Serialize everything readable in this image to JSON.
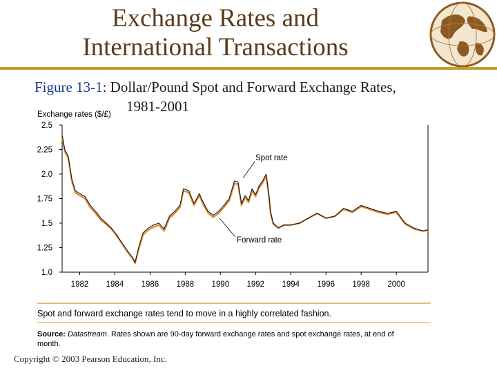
{
  "slide": {
    "title_line1": "Exchange Rates and",
    "title_line2": "International Transactions",
    "figure_number": "Figure 13-1",
    "figure_sep": ":",
    "figure_title_line1": "Dollar/Pound Spot and Forward Exchange Rates,",
    "figure_title_line2": "1981-2001",
    "note": "Spot and forward exchange rates tend to move in a highly correlated fashion.",
    "source_label": "Source:",
    "source_name": "Datastream",
    "source_text": ". Rates shown are 90-day forward exchange rates and spot exchange rates, at end of month.",
    "copyright": "Copyright © 2003 Pearson Education, Inc.",
    "globe_icon": "globe-icon",
    "colors": {
      "title": "#5a3a1a",
      "rule": "#c99a2e",
      "spot": "#222222",
      "forward": "#e08a2a",
      "figure_number": "#1a3a8a"
    }
  },
  "chart_data": {
    "type": "line",
    "ylabel": "Exchange rates ($/£)",
    "ylim": [
      1.0,
      2.5
    ],
    "xlim": [
      1981.0,
      2001.8
    ],
    "y_ticks": [
      "1.0",
      "1.25",
      "1.5",
      "1.75",
      "2.0",
      "2.25",
      "2.5"
    ],
    "x_ticks": [
      "1982",
      "1984",
      "1986",
      "1988",
      "1990",
      "1992",
      "1994",
      "1996",
      "1998",
      "2000"
    ],
    "grid": false,
    "annotations": [
      "Spot rate",
      "Forward rate"
    ],
    "series": [
      {
        "name": "Spot rate",
        "x": [
          1981.0,
          1981.15,
          1981.35,
          1981.55,
          1981.75,
          1982.0,
          1982.3,
          1982.6,
          1982.9,
          1983.2,
          1983.5,
          1983.8,
          1984.1,
          1984.4,
          1984.7,
          1985.0,
          1985.15,
          1985.35,
          1985.6,
          1985.9,
          1986.2,
          1986.5,
          1986.8,
          1987.1,
          1987.4,
          1987.7,
          1987.9,
          1988.2,
          1988.5,
          1988.8,
          1989.0,
          1989.3,
          1989.6,
          1989.9,
          1990.2,
          1990.5,
          1990.8,
          1991.0,
          1991.2,
          1991.4,
          1991.6,
          1991.8,
          1992.0,
          1992.2,
          1992.4,
          1992.6,
          1992.75,
          1992.85,
          1993.0,
          1993.3,
          1993.6,
          1994.0,
          1994.5,
          1995.0,
          1995.5,
          1996.0,
          1996.5,
          1997.0,
          1997.5,
          1998.0,
          1998.5,
          1999.0,
          1999.5,
          2000.0,
          2000.5,
          2001.0,
          2001.5,
          2001.8
        ],
        "y": [
          2.4,
          2.25,
          2.18,
          1.95,
          1.83,
          1.8,
          1.77,
          1.68,
          1.62,
          1.55,
          1.5,
          1.45,
          1.38,
          1.3,
          1.22,
          1.15,
          1.1,
          1.25,
          1.4,
          1.45,
          1.48,
          1.5,
          1.44,
          1.57,
          1.62,
          1.68,
          1.85,
          1.83,
          1.7,
          1.8,
          1.72,
          1.62,
          1.58,
          1.62,
          1.68,
          1.75,
          1.93,
          1.92,
          1.7,
          1.78,
          1.73,
          1.85,
          1.79,
          1.88,
          1.93,
          2.0,
          1.8,
          1.62,
          1.5,
          1.45,
          1.48,
          1.48,
          1.5,
          1.55,
          1.6,
          1.55,
          1.57,
          1.65,
          1.62,
          1.68,
          1.65,
          1.62,
          1.6,
          1.62,
          1.5,
          1.45,
          1.42,
          1.43
        ]
      },
      {
        "name": "Forward rate",
        "x": [
          1981.0,
          1981.15,
          1981.35,
          1981.55,
          1981.75,
          1982.0,
          1982.3,
          1982.6,
          1982.9,
          1983.2,
          1983.5,
          1983.8,
          1984.1,
          1984.4,
          1984.7,
          1985.0,
          1985.15,
          1985.35,
          1985.6,
          1985.9,
          1986.2,
          1986.5,
          1986.8,
          1987.1,
          1987.4,
          1987.7,
          1987.9,
          1988.2,
          1988.5,
          1988.8,
          1989.0,
          1989.3,
          1989.6,
          1989.9,
          1990.2,
          1990.5,
          1990.8,
          1991.0,
          1991.2,
          1991.4,
          1991.6,
          1991.8,
          1992.0,
          1992.2,
          1992.4,
          1992.6,
          1992.75,
          1992.85,
          1993.0,
          1993.3,
          1993.6,
          1994.0,
          1994.5,
          1995.0,
          1995.5,
          1996.0,
          1996.5,
          1997.0,
          1997.5,
          1998.0,
          1998.5,
          1999.0,
          1999.5,
          2000.0,
          2000.5,
          2001.0,
          2001.5,
          2001.8
        ],
        "y": [
          2.38,
          2.23,
          2.16,
          1.93,
          1.81,
          1.78,
          1.75,
          1.66,
          1.6,
          1.53,
          1.49,
          1.44,
          1.37,
          1.29,
          1.21,
          1.14,
          1.09,
          1.23,
          1.38,
          1.43,
          1.46,
          1.48,
          1.42,
          1.55,
          1.6,
          1.66,
          1.83,
          1.81,
          1.68,
          1.78,
          1.7,
          1.6,
          1.56,
          1.6,
          1.66,
          1.73,
          1.9,
          1.9,
          1.68,
          1.76,
          1.71,
          1.83,
          1.77,
          1.86,
          1.91,
          1.98,
          1.78,
          1.6,
          1.49,
          1.45,
          1.48,
          1.48,
          1.5,
          1.55,
          1.6,
          1.55,
          1.57,
          1.64,
          1.61,
          1.67,
          1.64,
          1.61,
          1.59,
          1.61,
          1.49,
          1.44,
          1.42,
          1.43
        ]
      }
    ]
  }
}
